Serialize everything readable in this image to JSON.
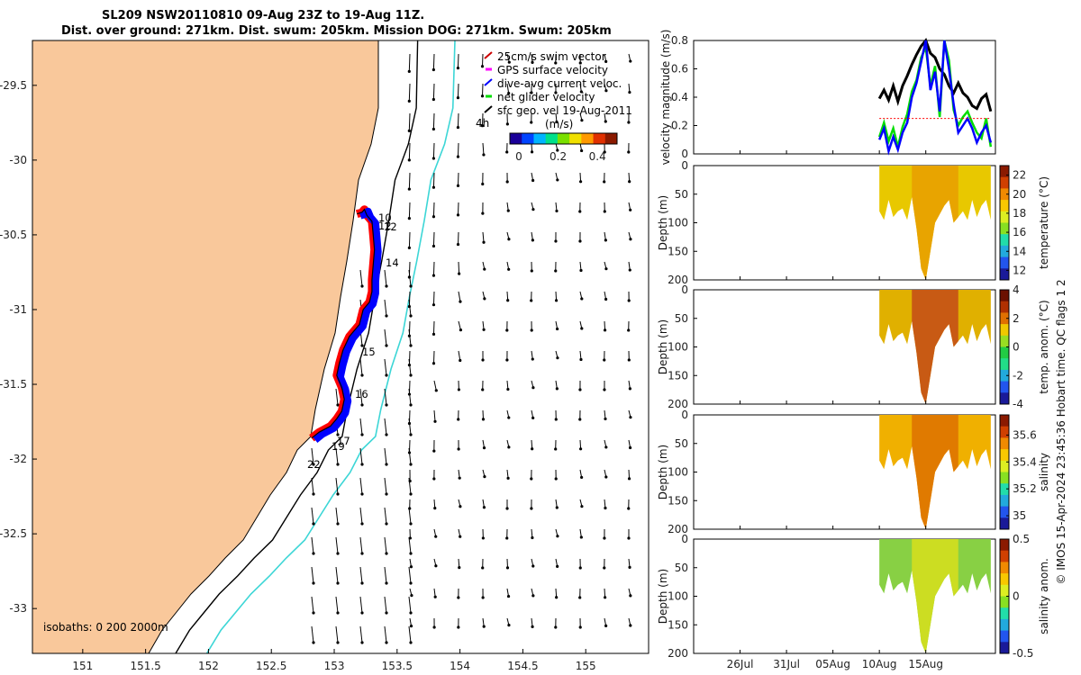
{
  "title": {
    "line1": "SL209 NSW20110810 09-Aug 23Z to 19-Aug 11Z.",
    "line2": "Dist. over ground: 271km. Dist. swum: 205km. Mission DOG: 271km. Swum: 205km"
  },
  "colors": {
    "land": "#f9c89b",
    "track_swim": "#ff0000",
    "track_current": "#0000ff",
    "isobath200": "#000000",
    "isobath2000": "#3cd6d6"
  },
  "map": {
    "legend": [
      {
        "label": "25cm/s swim vector",
        "color": "#cc0000",
        "icon": "arrow-icon"
      },
      {
        "label": "GPS surface velocity",
        "color": "#ff00ff",
        "icon": "dash-icon"
      },
      {
        "label": "dive-avg current veloc.",
        "color": "#0000ff",
        "icon": "arrow-icon"
      },
      {
        "label": "net glider velocity",
        "color": "#00dd00",
        "icon": "dash-icon"
      },
      {
        "label": "sfc geo. vel 19-Aug-2011",
        "color": "#000000",
        "icon": "arrow-icon"
      }
    ],
    "colorbar_label": "(m/s)",
    "colorbar_ticks": [
      "0",
      "0.2",
      "0.4"
    ],
    "isobaths_label": "isobaths: 0   200   2000m",
    "corner_label": "4h",
    "day_labels": [
      "10",
      "12",
      "12",
      "14",
      "15",
      "16",
      "17",
      "19",
      "22"
    ]
  },
  "chart_data": [
    {
      "type": "scatter",
      "title": "Glider track map",
      "xlim": [
        150.6,
        155.5
      ],
      "ylim": [
        -33.3,
        -29.2
      ],
      "x_ticks": [
        151,
        151.5,
        152,
        152.5,
        153,
        153.5,
        154,
        154.5,
        155
      ],
      "y_ticks": [
        -29.5,
        -30,
        -30.5,
        -31,
        -31.5,
        -32,
        -32.5,
        -33
      ],
      "track_lon": [
        153.18,
        153.22,
        153.24,
        153.26,
        153.3,
        153.31,
        153.32,
        153.31,
        153.3,
        153.3,
        153.28,
        153.23,
        153.2,
        153.12,
        153.07,
        153.04,
        153.02,
        153.06,
        153.08,
        153.06,
        153.02,
        152.97,
        152.88,
        152.82
      ],
      "track_lat": [
        -30.36,
        -30.35,
        -30.33,
        -30.37,
        -30.41,
        -30.5,
        -30.6,
        -30.7,
        -30.8,
        -30.88,
        -30.95,
        -31.0,
        -31.1,
        -31.18,
        -31.27,
        -31.36,
        -31.44,
        -31.52,
        -31.6,
        -31.68,
        -31.73,
        -31.78,
        -31.82,
        -31.86
      ]
    },
    {
      "type": "line",
      "ylabel": "velocity magnitude (m/s)",
      "ylim": [
        0,
        0.8
      ],
      "y_ticks": [
        0,
        0.2,
        0.4,
        0.6,
        0.8
      ],
      "x_ticks": [
        "26Jul",
        "31Jul",
        "05Aug",
        "10Aug",
        "15Aug"
      ],
      "days": [
        10,
        10.5,
        11,
        11.5,
        12,
        12.5,
        13,
        13.5,
        14,
        14.5,
        15,
        15.5,
        16,
        16.5,
        17,
        17.5,
        18,
        18.5,
        19,
        19.5,
        20,
        20.5,
        21,
        21.5,
        22
      ],
      "series": [
        {
          "name": "sfc geo. vel",
          "color": "#000000",
          "values": [
            0.39,
            0.45,
            0.38,
            0.48,
            0.37,
            0.48,
            0.55,
            0.63,
            0.7,
            0.76,
            0.8,
            0.71,
            0.68,
            0.6,
            0.56,
            0.48,
            0.43,
            0.5,
            0.43,
            0.4,
            0.34,
            0.32,
            0.39,
            0.42,
            0.3
          ]
        },
        {
          "name": "net glider velocity",
          "color": "#00dd00",
          "values": [
            0.12,
            0.22,
            0.09,
            0.18,
            0.05,
            0.19,
            0.28,
            0.44,
            0.52,
            0.68,
            0.75,
            0.48,
            0.62,
            0.26,
            0.8,
            0.66,
            0.31,
            0.2,
            0.26,
            0.3,
            0.22,
            0.15,
            0.11,
            0.25,
            0.05
          ]
        },
        {
          "name": "dive-avg current",
          "color": "#0000ff",
          "values": [
            0.1,
            0.18,
            0.02,
            0.12,
            0.03,
            0.15,
            0.22,
            0.4,
            0.5,
            0.65,
            0.8,
            0.45,
            0.58,
            0.3,
            0.8,
            0.6,
            0.35,
            0.15,
            0.2,
            0.25,
            0.18,
            0.08,
            0.15,
            0.2,
            0.08
          ]
        },
        {
          "name": "GPS surface velocity",
          "color": "#ff0000",
          "values": [
            0.25,
            0.25,
            0.25,
            0.25,
            0.25,
            0.25,
            0.25,
            0.25,
            0.25,
            0.25,
            0.25,
            0.25,
            0.25,
            0.25,
            0.25,
            0.25,
            0.25,
            0.25,
            0.25,
            0.25,
            0.25,
            0.25,
            0.25,
            0.25,
            0.25
          ]
        }
      ]
    },
    {
      "type": "heatmap",
      "panels": [
        {
          "ylabel": "Depth (m)",
          "cbar_label": "temperature (°C)",
          "cbar_ticks": [
            "22",
            "20",
            "18",
            "16",
            "14",
            "12"
          ],
          "cbar_range": [
            11,
            23
          ]
        },
        {
          "ylabel": "Depth (m)",
          "cbar_label": "temp. anom. (°C)",
          "cbar_ticks": [
            "4",
            "2",
            "0",
            "-2",
            "-4"
          ],
          "cbar_range": [
            -4,
            4
          ]
        },
        {
          "ylabel": "Depth (m)",
          "cbar_label": "salinity",
          "cbar_ticks": [
            "35.6",
            "35.4",
            "35.2",
            "35"
          ],
          "cbar_range": [
            34.9,
            35.75
          ]
        },
        {
          "ylabel": "Depth (m)",
          "cbar_label": "salinity anom.",
          "cbar_ticks": [
            "0.5",
            "0",
            "-0.5"
          ],
          "cbar_range": [
            -0.5,
            0.5
          ]
        }
      ],
      "y_ticks": [
        0,
        50,
        100,
        150,
        200
      ],
      "ylim": [
        0,
        200
      ],
      "x_ticks": [
        "26Jul",
        "31Jul",
        "05Aug",
        "10Aug",
        "15Aug"
      ],
      "dive_depth_days": [
        10,
        10.5,
        11,
        11.5,
        12,
        12.5,
        13,
        13.5,
        14,
        14.5,
        15,
        15.5,
        16,
        16.5,
        17,
        17.5,
        18,
        18.5,
        19,
        19.5,
        20,
        20.5,
        21,
        21.5,
        22
      ],
      "dive_depth_values": [
        80,
        95,
        60,
        90,
        80,
        75,
        95,
        55,
        110,
        180,
        200,
        150,
        100,
        85,
        70,
        60,
        100,
        90,
        80,
        95,
        60,
        90,
        70,
        60,
        95
      ]
    }
  ],
  "sidebar": {
    "credit": "© IMOS 15-Apr-2024 23:45:36 Hobart time. QC flags 1  2"
  }
}
